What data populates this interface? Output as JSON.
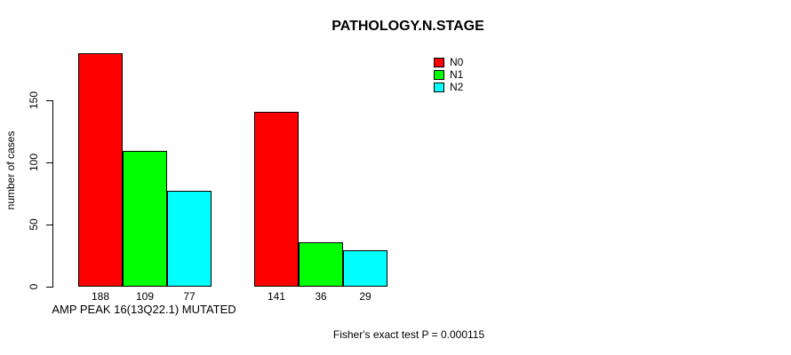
{
  "title": "PATHOLOGY.N.STAGE",
  "ylabel": "number of cases",
  "xlabel": "AMP PEAK 16(13Q22.1) MUTATED",
  "footer": "Fisher's exact test P = 0.000115",
  "legend": [
    {
      "label": "N0",
      "color": "#ff0000"
    },
    {
      "label": "N1",
      "color": "#00ff00"
    },
    {
      "label": "N2",
      "color": "#00ffff"
    }
  ],
  "colors": {
    "background": "#ffffff",
    "axis": "#000000",
    "bar_border": "#000000"
  },
  "chart_data": {
    "type": "bar",
    "title": "PATHOLOGY.N.STAGE",
    "xlabel": "AMP PEAK 16(13Q22.1) MUTATED",
    "ylabel": "number of cases",
    "ylim": [
      0,
      150
    ],
    "yticks": [
      0,
      50,
      100,
      150
    ],
    "grid": false,
    "legend_position": "top-right",
    "group_count": 2,
    "series": [
      {
        "name": "N0",
        "color": "#ff0000",
        "values": [
          188,
          141
        ]
      },
      {
        "name": "N1",
        "color": "#00ff00",
        "values": [
          109,
          36
        ]
      },
      {
        "name": "N2",
        "color": "#00ffff",
        "values": [
          77,
          29
        ]
      }
    ],
    "bar_value_labels": [
      [
        188,
        109,
        77
      ],
      [
        141,
        36,
        29
      ]
    ],
    "annotation": "Fisher's exact test P = 0.000115"
  }
}
